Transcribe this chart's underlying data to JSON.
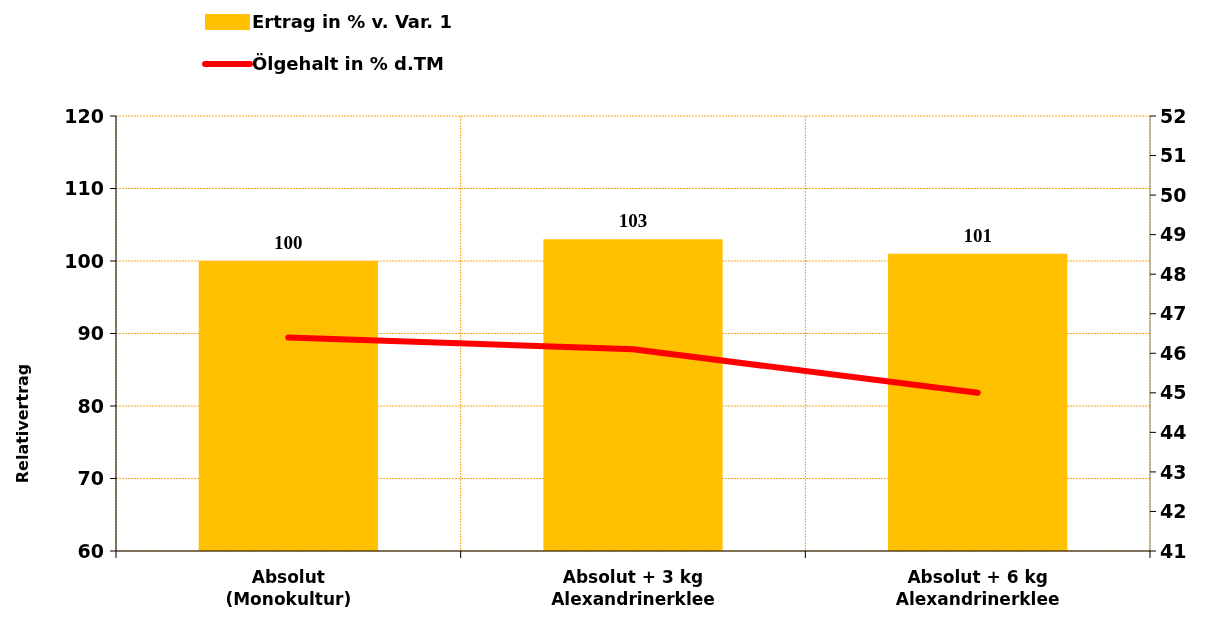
{
  "chart_data": {
    "type": "bar",
    "categories": [
      "Absolut\n(Monokultur)",
      "Absolut + 3 kg\nAlexandrinerklee",
      "Absolut + 6 kg\nAlexandrinerklee"
    ],
    "series": [
      {
        "name": "Ertrag in % v. Var. 1",
        "color": "#ffc000",
        "values": [
          100,
          103,
          101
        ],
        "value_labels": [
          "100",
          "103",
          "101"
        ]
      },
      {
        "name": "Ölgehalt in % d.TM",
        "type": "line",
        "axis": "y2",
        "color": "#ff0000",
        "values": [
          46.4,
          46.1,
          45.0
        ]
      }
    ],
    "ylabel": "Relativertrag",
    "ylim": [
      60,
      120
    ],
    "yticks": [
      60,
      70,
      80,
      90,
      100,
      110,
      120
    ],
    "y2lim": [
      41,
      52
    ],
    "y2ticks": [
      41,
      42,
      43,
      44,
      45,
      46,
      47,
      48,
      49,
      50,
      51,
      52
    ],
    "grid": true,
    "legend": "top",
    "marker": "none",
    "line_style": "solid"
  }
}
